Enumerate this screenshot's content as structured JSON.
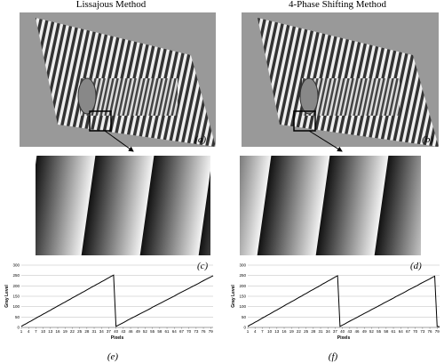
{
  "figure": {
    "titles": [
      "Lissajous Method",
      "4-Phase Shifting Method"
    ],
    "panel_labels": [
      "(a)",
      "(b)",
      "(c)",
      "(d)",
      "(e)",
      "(f)"
    ]
  },
  "chart_data": [
    {
      "type": "line",
      "xlabel": "Pixels",
      "ylabel": "Gray Level",
      "color": "#000000",
      "grid": true,
      "x": [
        1,
        2,
        3,
        4,
        5,
        6,
        7,
        8,
        9,
        10,
        11,
        12,
        13,
        14,
        15,
        16,
        17,
        18,
        19,
        20,
        21,
        22,
        23,
        24,
        25,
        26,
        27,
        28,
        29,
        30,
        31,
        32,
        33,
        34,
        35,
        36,
        37,
        38,
        39,
        40,
        41,
        42,
        43,
        44,
        45,
        46,
        47,
        48,
        49,
        50,
        51,
        52,
        53,
        54,
        55,
        56,
        57,
        58,
        59,
        60,
        61,
        62,
        63,
        64,
        65,
        66,
        67,
        68,
        69,
        70,
        71,
        72,
        73,
        74,
        75,
        76,
        77,
        78,
        79,
        80
      ],
      "values": [
        5,
        12,
        18,
        25,
        31,
        38,
        44,
        51,
        57,
        64,
        70,
        77,
        83,
        90,
        96,
        103,
        109,
        116,
        122,
        129,
        135,
        142,
        148,
        155,
        161,
        168,
        174,
        181,
        187,
        194,
        200,
        207,
        213,
        220,
        226,
        233,
        239,
        246,
        252,
        5,
        11,
        17,
        23,
        29,
        36,
        42,
        48,
        54,
        60,
        66,
        72,
        78,
        84,
        90,
        97,
        103,
        109,
        115,
        121,
        127,
        133,
        139,
        145,
        151,
        158,
        164,
        170,
        176,
        182,
        188,
        194,
        200,
        206,
        212,
        219,
        225,
        231,
        237,
        243,
        249
      ],
      "xlim": [
        1,
        80
      ],
      "xticks": [
        1,
        4,
        7,
        10,
        13,
        16,
        19,
        22,
        25,
        28,
        31,
        34,
        37,
        40,
        43,
        46,
        49,
        52,
        55,
        58,
        61,
        64,
        67,
        70,
        73,
        76,
        79
      ],
      "ylim": [
        0,
        300
      ],
      "yticks": [
        0,
        50,
        100,
        150,
        200,
        250,
        300
      ]
    },
    {
      "type": "line",
      "xlabel": "Pixels",
      "ylabel": "Gray Level",
      "color": "#000000",
      "grid": true,
      "x": [
        1,
        2,
        3,
        4,
        5,
        6,
        7,
        8,
        9,
        10,
        11,
        12,
        13,
        14,
        15,
        16,
        17,
        18,
        19,
        20,
        21,
        22,
        23,
        24,
        25,
        26,
        27,
        28,
        29,
        30,
        31,
        32,
        33,
        34,
        35,
        36,
        37,
        38,
        39,
        40,
        41,
        42,
        43,
        44,
        45,
        46,
        47,
        48,
        49,
        50,
        51,
        52,
        53,
        54,
        55,
        56,
        57,
        58,
        59,
        60,
        61,
        62,
        63,
        64,
        65,
        66,
        67,
        68,
        69,
        70,
        71,
        72,
        73,
        74,
        75,
        76,
        77,
        78,
        79,
        80
      ],
      "values": [
        5,
        12,
        18,
        25,
        31,
        38,
        45,
        51,
        58,
        64,
        71,
        78,
        84,
        91,
        97,
        104,
        111,
        117,
        124,
        130,
        137,
        144,
        150,
        157,
        163,
        170,
        177,
        183,
        190,
        196,
        203,
        210,
        216,
        223,
        229,
        236,
        243,
        249,
        5,
        11,
        17,
        24,
        30,
        36,
        42,
        48,
        55,
        61,
        67,
        73,
        79,
        86,
        92,
        98,
        104,
        110,
        117,
        123,
        129,
        135,
        141,
        148,
        154,
        160,
        166,
        172,
        179,
        185,
        191,
        197,
        203,
        210,
        216,
        222,
        228,
        234,
        241,
        247,
        5,
        3
      ],
      "xlim": [
        1,
        80
      ],
      "xticks": [
        1,
        4,
        7,
        10,
        13,
        16,
        19,
        22,
        25,
        28,
        31,
        34,
        37,
        40,
        43,
        46,
        49,
        52,
        55,
        58,
        61,
        64,
        67,
        70,
        73,
        76,
        79
      ],
      "ylim": [
        0,
        300
      ],
      "yticks": [
        0,
        50,
        100,
        150,
        200,
        250,
        300
      ]
    }
  ]
}
